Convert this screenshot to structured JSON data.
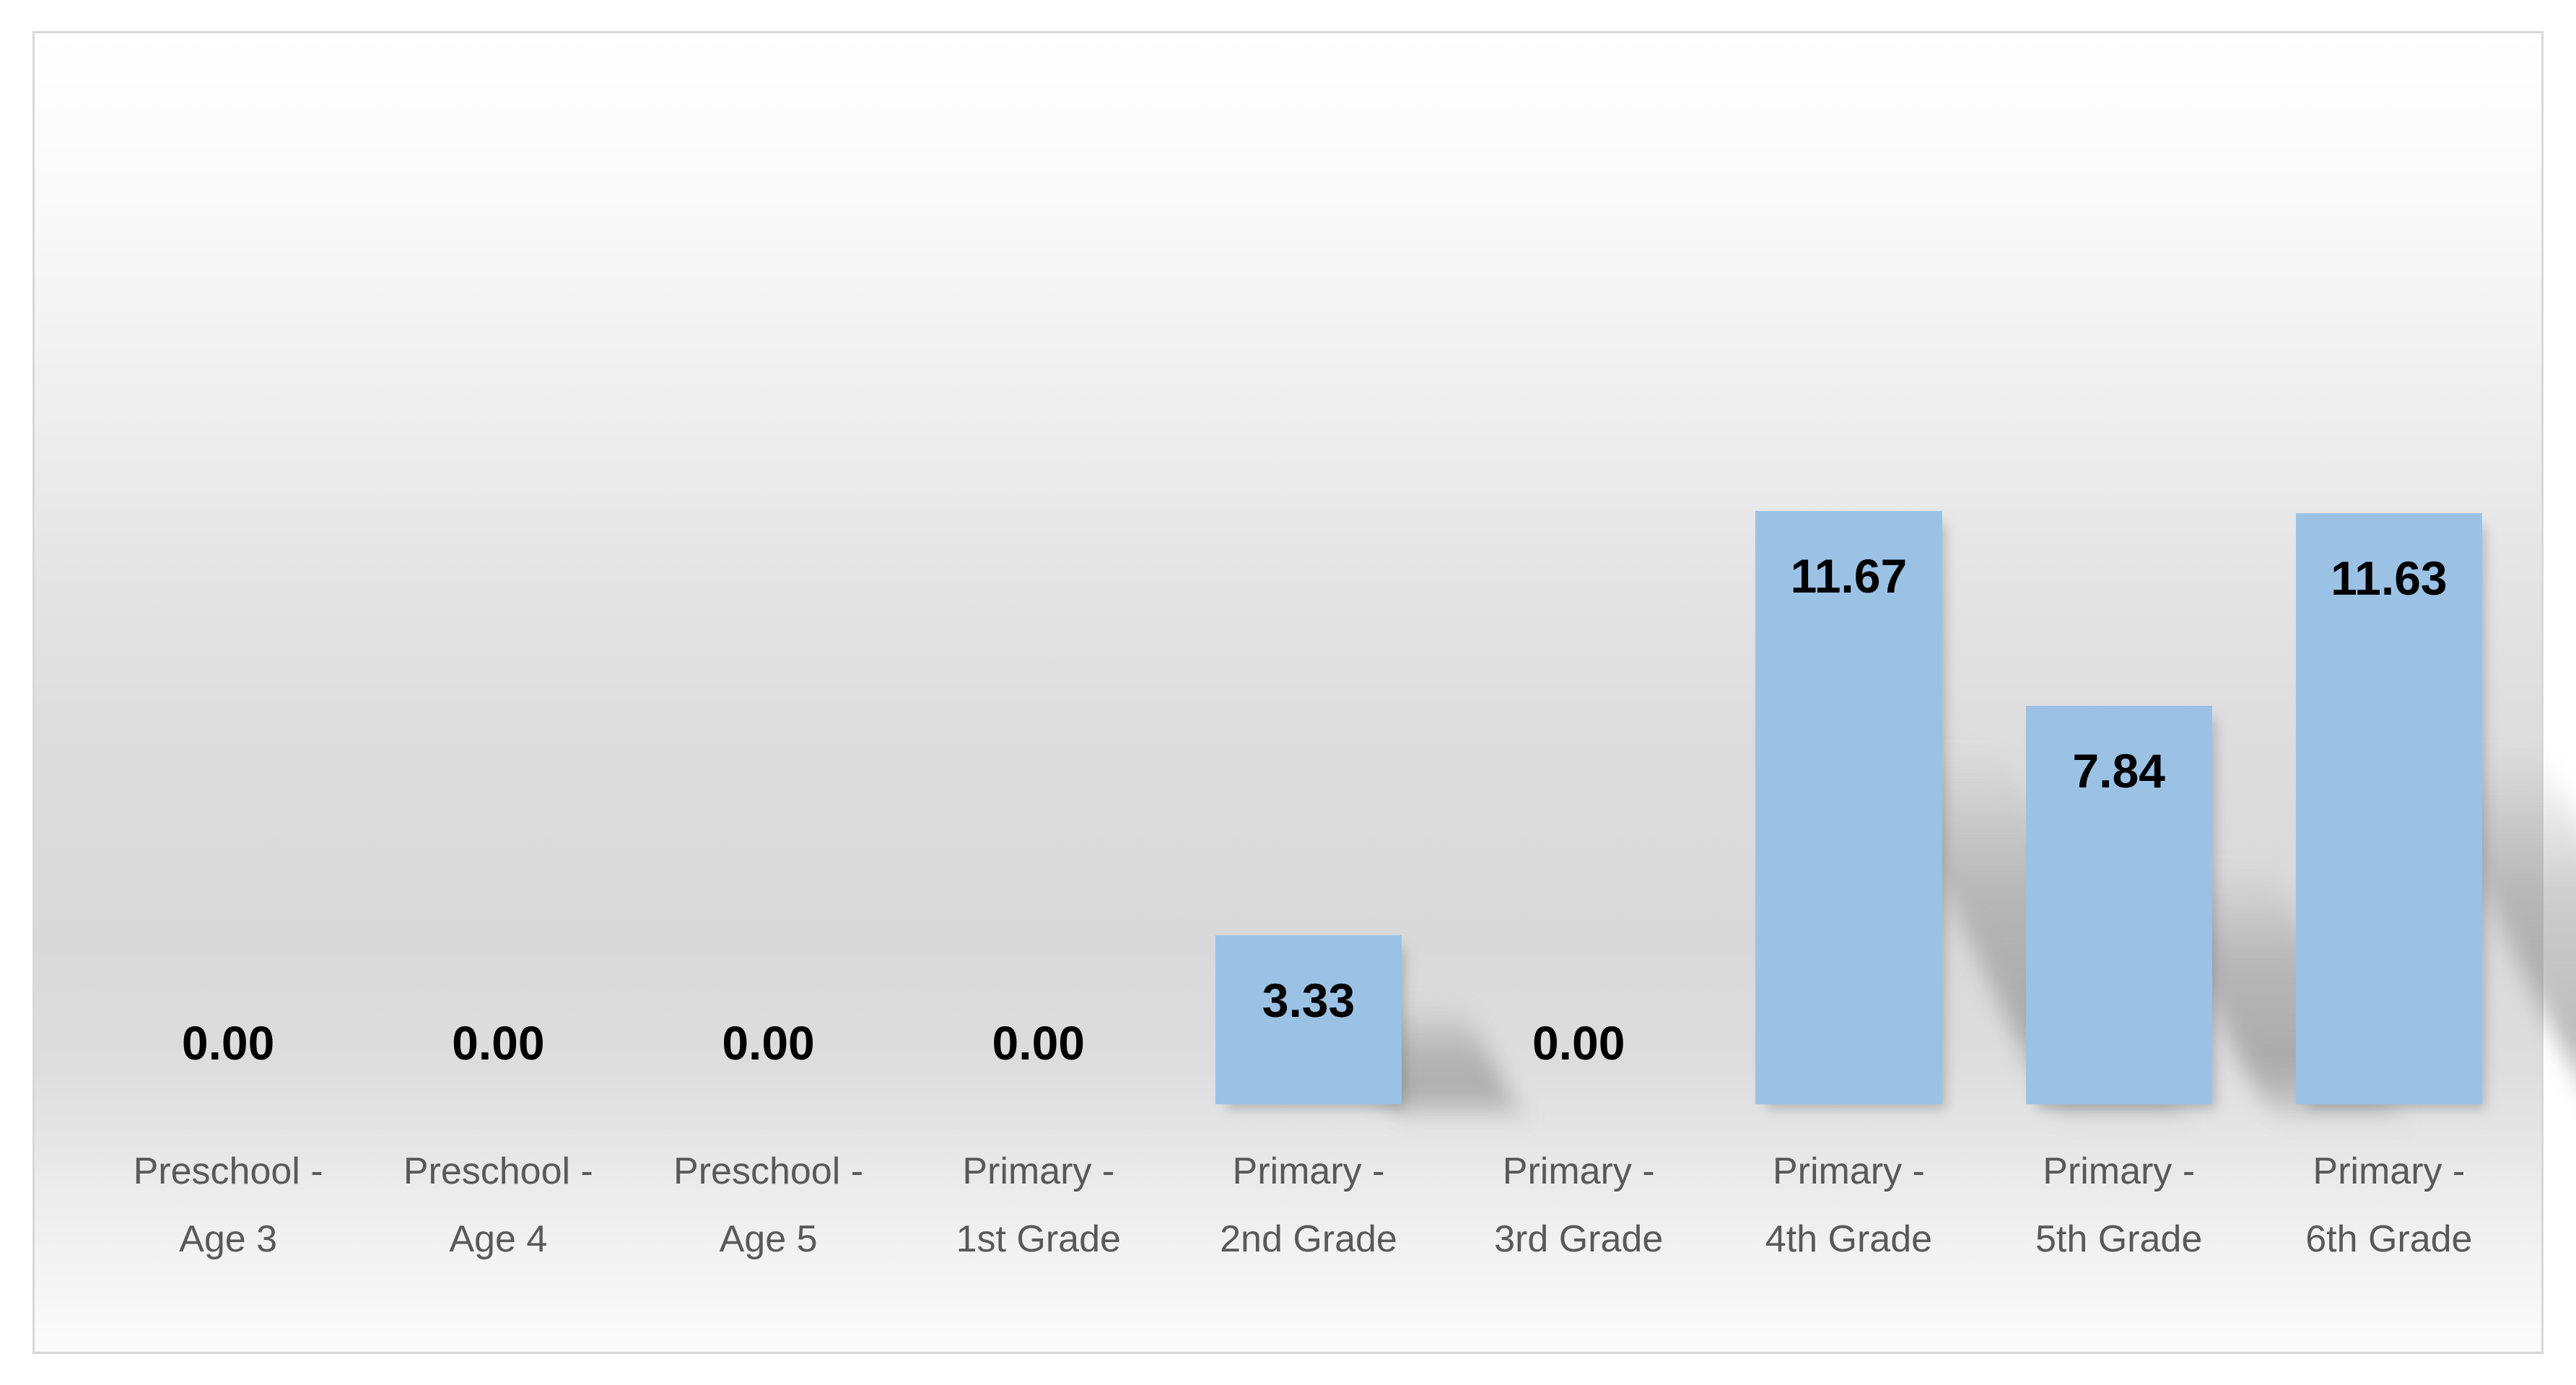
{
  "chart_data": {
    "type": "bar",
    "title": "",
    "xlabel": "",
    "ylabel": "",
    "categories": [
      "Preschool - Age 3",
      "Preschool - Age 4",
      "Preschool - Age 5",
      "Primary - 1st Grade",
      "Primary - 2nd Grade",
      "Primary - 3rd Grade",
      "Primary - 4th Grade",
      "Primary - 5th Grade",
      "Primary - 6th Grade"
    ],
    "category_lines": [
      [
        "Preschool -",
        "Age 3"
      ],
      [
        "Preschool -",
        "Age 4"
      ],
      [
        "Preschool -",
        "Age 5"
      ],
      [
        "Primary -",
        "1st Grade"
      ],
      [
        "Primary -",
        "2nd Grade"
      ],
      [
        "Primary -",
        "3rd Grade"
      ],
      [
        "Primary -",
        "4th Grade"
      ],
      [
        "Primary -",
        "5th Grade"
      ],
      [
        "Primary -",
        "6th Grade"
      ]
    ],
    "values": [
      0,
      0,
      0,
      0,
      3.33,
      0,
      11.67,
      7.84,
      11.63
    ],
    "data_labels": [
      "0.00",
      "0.00",
      "0.00",
      "0.00",
      "3.33",
      "0.00",
      "11.67",
      "7.84",
      "11.63"
    ],
    "ylim": [
      0,
      21.1
    ],
    "grid": false,
    "legend": "none",
    "axis_lines": "none",
    "data_label_position": "inside-end",
    "bar_color": "#9BC2E5",
    "data_label_color": "#000000",
    "category_label_color": "#595959",
    "frame_border_color": "#D8D8D8",
    "background_gradient": [
      "#FFFFFF",
      "#D9D9D9",
      "#FBFBFB"
    ],
    "bar_effect": "perspective-shadow-lower-right"
  }
}
